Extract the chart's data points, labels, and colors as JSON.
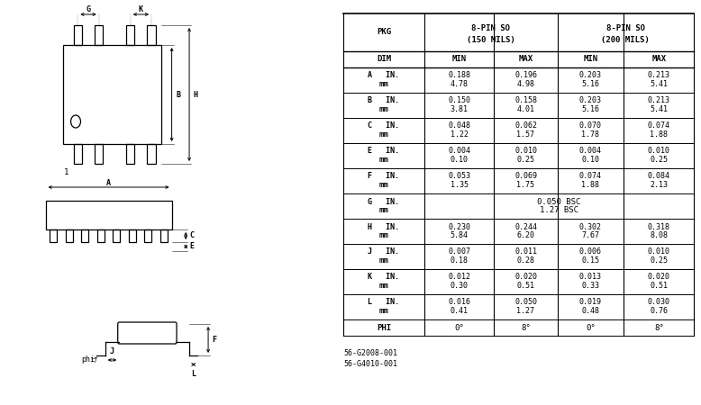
{
  "bg_color": "#ffffff",
  "line_color": "#000000",
  "text_color": "#000000",
  "table_rows": [
    {
      "dim": "A",
      "in1": "0.188",
      "in2": "0.196",
      "in3": "0.203",
      "in4": "0.213",
      "mm1": "4.78",
      "mm2": "4.98",
      "mm3": "5.16",
      "mm4": "5.41"
    },
    {
      "dim": "B",
      "in1": "0.150",
      "in2": "0.158",
      "in3": "0.203",
      "in4": "0.213",
      "mm1": "3.81",
      "mm2": "4.01",
      "mm3": "5.16",
      "mm4": "5.41"
    },
    {
      "dim": "C",
      "in1": "0.048",
      "in2": "0.062",
      "in3": "0.070",
      "in4": "0.074",
      "mm1": "1.22",
      "mm2": "1.57",
      "mm3": "1.78",
      "mm4": "1.88"
    },
    {
      "dim": "E",
      "in1": "0.004",
      "in2": "0.010",
      "in3": "0.004",
      "in4": "0.010",
      "mm1": "0.10",
      "mm2": "0.25",
      "mm3": "0.10",
      "mm4": "0.25"
    },
    {
      "dim": "F",
      "in1": "0.053",
      "in2": "0.069",
      "in3": "0.074",
      "in4": "0.084",
      "mm1": "1.35",
      "mm2": "1.75",
      "mm3": "1.88",
      "mm4": "2.13"
    },
    {
      "dim": "G",
      "bsc_in": "0.050 BSC",
      "bsc_mm": "1.27 BSC"
    },
    {
      "dim": "H",
      "in1": "0.230",
      "in2": "0.244",
      "in3": "0.302",
      "in4": "0.318",
      "mm1": "5.84",
      "mm2": "6.20",
      "mm3": "7.67",
      "mm4": "8.08"
    },
    {
      "dim": "J",
      "in1": "0.007",
      "in2": "0.011",
      "in3": "0.006",
      "in4": "0.010",
      "mm1": "0.18",
      "mm2": "0.28",
      "mm3": "0.15",
      "mm4": "0.25"
    },
    {
      "dim": "K",
      "in1": "0.012",
      "in2": "0.020",
      "in3": "0.013",
      "in4": "0.020",
      "mm1": "0.30",
      "mm2": "0.51",
      "mm3": "0.33",
      "mm4": "0.51"
    },
    {
      "dim": "L",
      "in1": "0.016",
      "in2": "0.050",
      "in3": "0.019",
      "in4": "0.030",
      "mm1": "0.41",
      "mm2": "1.27",
      "mm3": "0.48",
      "mm4": "0.76"
    },
    {
      "dim": "PHI",
      "in1": "0°",
      "in2": "8°",
      "in3": "0°",
      "in4": "8°"
    }
  ],
  "footnotes": [
    "56-G2008-001",
    "56-G4010-001"
  ]
}
